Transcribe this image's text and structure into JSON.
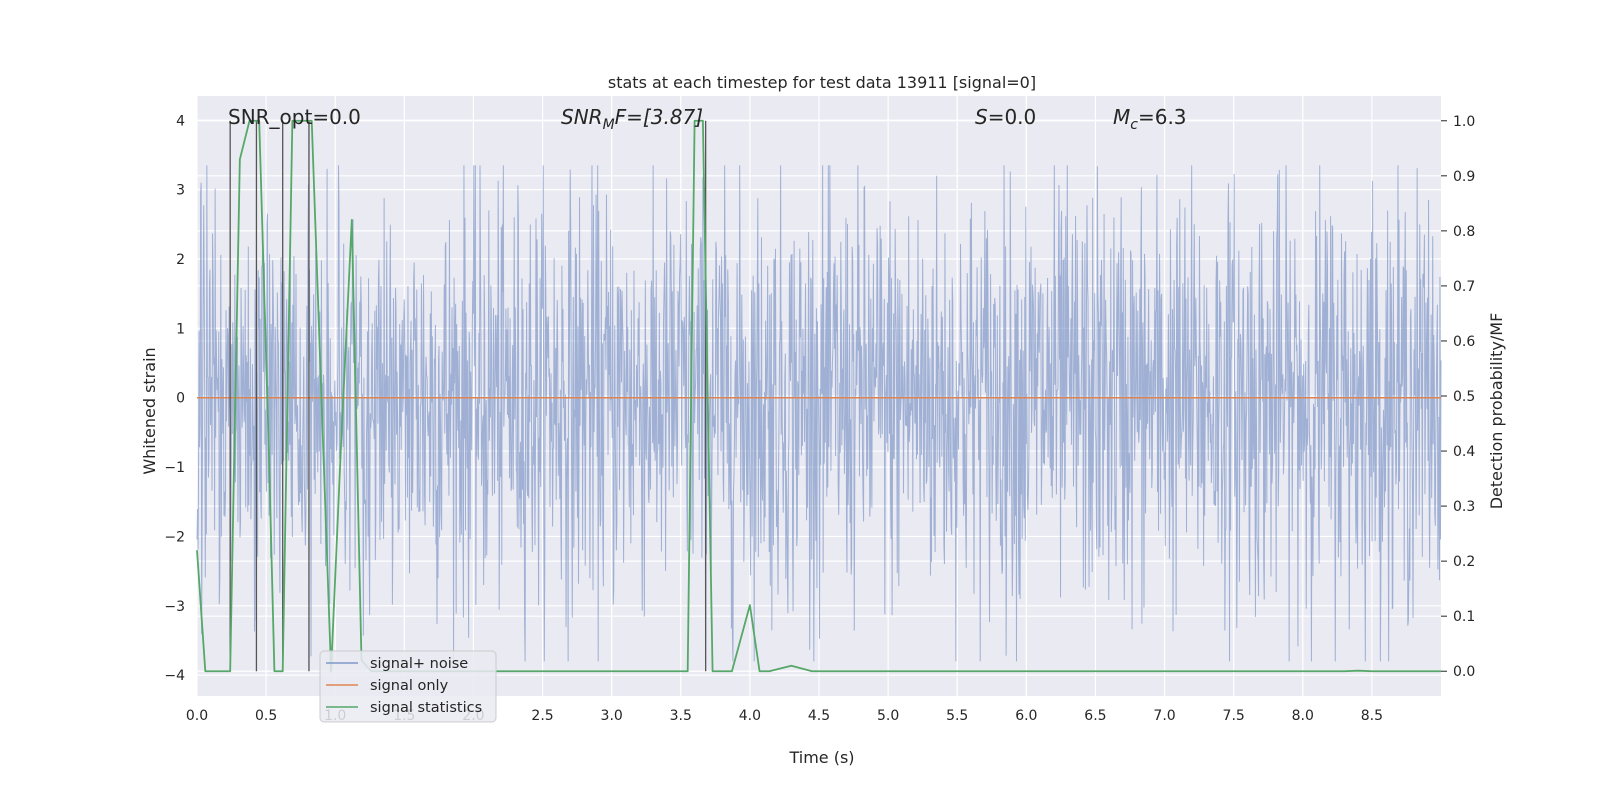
{
  "chart_data": {
    "type": "line",
    "title": "stats at each timestep for test data 13911 [signal=0]",
    "xlabel": "Time (s)",
    "ylabel_left": "Whitened strain",
    "ylabel_right": "Detection probability/MF",
    "xlim": [
      0.0,
      9.0
    ],
    "ylim_left": [
      -4.3,
      4.35
    ],
    "ylim_right": [
      -0.045,
      1.045
    ],
    "x_ticks": [
      "0.0",
      "0.5",
      "1.0",
      "1.5",
      "2.0",
      "2.5",
      "3.0",
      "3.5",
      "4.0",
      "4.5",
      "5.0",
      "5.5",
      "6.0",
      "6.5",
      "7.0",
      "7.5",
      "8.0",
      "8.5"
    ],
    "y_ticks_left": [
      "4",
      "3",
      "2",
      "1",
      "0",
      "−1",
      "−2",
      "−3",
      "−4"
    ],
    "y_ticks_right": [
      "1.0",
      "0.9",
      "0.8",
      "0.7",
      "0.6",
      "0.5",
      "0.4",
      "0.3",
      "0.2",
      "0.1",
      "0.0"
    ],
    "grid": true,
    "legend_position": "lower-left",
    "annotations": {
      "snr_opt": "SNR_opt=0.0",
      "snr_mf_base": "SNR",
      "snr_mf_sub": "M",
      "snr_mf_rest": "F=[3.87]",
      "s_label": "S",
      "s_value": "=0.0",
      "mc_label": "M",
      "mc_sub": "c",
      "mc_value": "=6.3"
    },
    "series": [
      {
        "name": "signal+ noise",
        "color": "#7f97c8",
        "envelope": {
          "typical_amplitude": 1.5,
          "peak_max": 3.35,
          "peak_min": -3.8
        }
      },
      {
        "name": "signal only",
        "color": "#dd8452",
        "values": "flat at 0"
      },
      {
        "name": "signal statistics",
        "color": "#55a868",
        "x": [
          0.0,
          0.06,
          0.24,
          0.31,
          0.38,
          0.45,
          0.52,
          0.56,
          0.62,
          0.69,
          0.76,
          0.83,
          0.97,
          1.04,
          1.12,
          1.19,
          1.26,
          3.49,
          3.55,
          3.6,
          3.66,
          3.73,
          3.8,
          3.87,
          4.0,
          4.07,
          4.14,
          4.3,
          4.45,
          8.3,
          8.4,
          8.5,
          9.0
        ],
        "y": [
          0.22,
          0.0,
          0.0,
          0.93,
          1.0,
          1.0,
          0.4,
          0.0,
          0.0,
          1.0,
          1.0,
          1.0,
          0.0,
          0.4,
          0.82,
          0.02,
          0.0,
          0.0,
          0.0,
          1.0,
          1.0,
          0.0,
          0.0,
          0.0,
          0.12,
          0.0,
          0.0,
          0.01,
          0.0,
          0.0,
          0.001,
          0.0,
          0.0
        ]
      }
    ],
    "detection_markers_x": [
      0.24,
      0.43,
      0.62,
      0.81,
      3.68
    ]
  }
}
